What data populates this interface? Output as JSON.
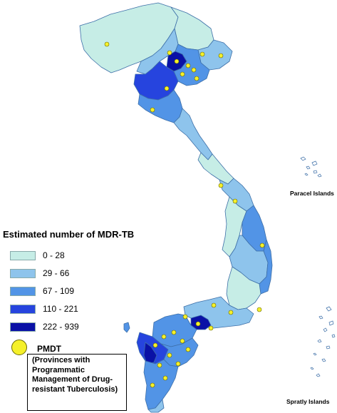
{
  "legend": {
    "title": "Estimated number of MDR-TB",
    "classes": [
      {
        "label": "0 - 28",
        "color": "#c6ede6"
      },
      {
        "label": "29 - 66",
        "color": "#8ec4ec"
      },
      {
        "label": "67 - 109",
        "color": "#5294e6"
      },
      {
        "label": "110 - 221",
        "color": "#2644de"
      },
      {
        "label": "222 - 939",
        "color": "#0a11a6"
      }
    ],
    "pmdt": {
      "label": "PMDT",
      "description": "(Provinces with Programmatic Management of Drug-resistant Tuberculosis)",
      "dot_color": "#f5f02a"
    }
  },
  "islands": {
    "paracel": "Paracel Islands",
    "spratly": "Spratly Islands"
  },
  "colors": {
    "outline": "#3d6fa8",
    "island_outline": "#3d6fa8"
  }
}
